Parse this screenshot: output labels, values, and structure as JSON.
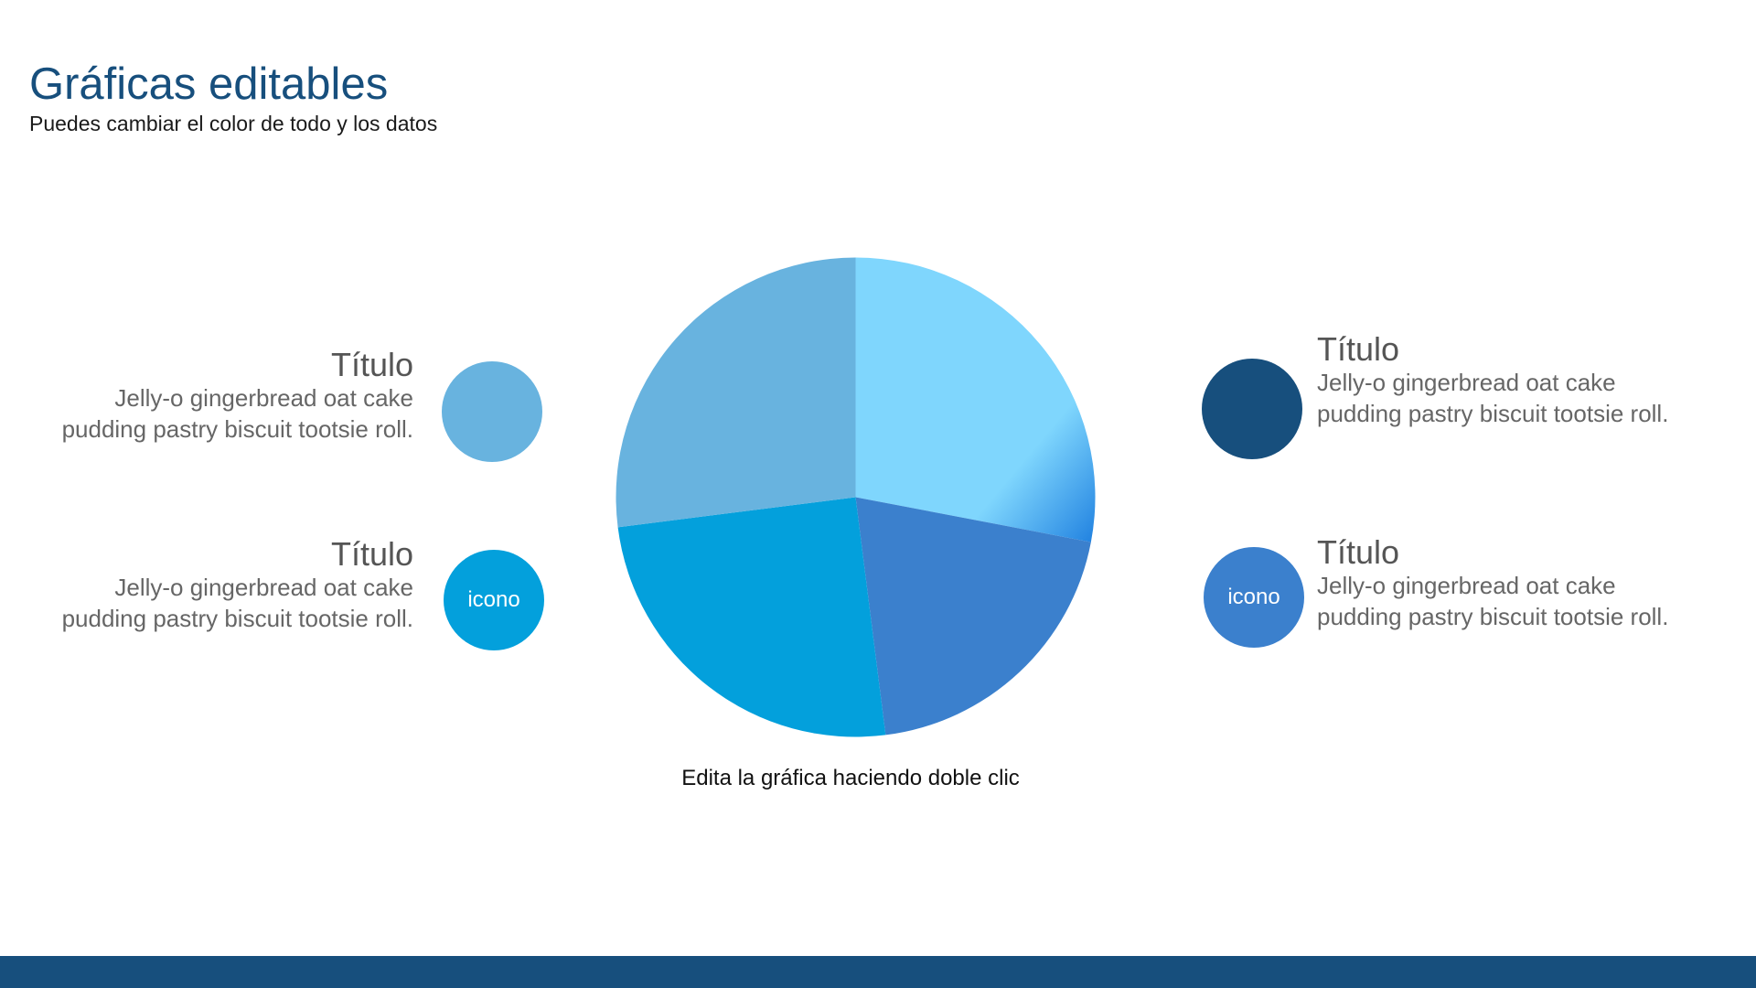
{
  "slide": {
    "title": "Gráficas editables",
    "subtitle": "Puedes cambiar el color de todo y los datos",
    "caption": "Edita la gráfica haciendo doble clic"
  },
  "items": [
    {
      "title": "Título",
      "line1": "Jelly-o gingerbread oat cake",
      "line2": "pudding pastry biscuit tootsie roll.",
      "icon_label": "",
      "color": "#68b3df"
    },
    {
      "title": "Título",
      "line1": "Jelly-o gingerbread oat cake",
      "line2": "pudding pastry biscuit tootsie roll.",
      "icon_label": "icono",
      "color": "#03a0dc"
    },
    {
      "title": "Título",
      "line1": "Jelly-o gingerbread oat cake",
      "line2": "pudding pastry biscuit tootsie roll.",
      "icon_label": "",
      "color": "#174f7d"
    },
    {
      "title": "Título",
      "line1": "Jelly-o gingerbread oat cake",
      "line2": "pudding pastry biscuit tootsie roll.",
      "icon_label": "icono",
      "color": "#3b80cd"
    }
  ],
  "chart_data": {
    "type": "pie",
    "title": "",
    "legend": "none",
    "slices": [
      {
        "value": 28,
        "color": "#7fd6fd",
        "color_end": "#2081e0"
      },
      {
        "value": 20,
        "color": "#3b80cd"
      },
      {
        "value": 25,
        "color": "#03a0dc"
      },
      {
        "value": 27,
        "color": "#68b3df"
      }
    ]
  },
  "footer": {
    "color": "#174f7d"
  }
}
